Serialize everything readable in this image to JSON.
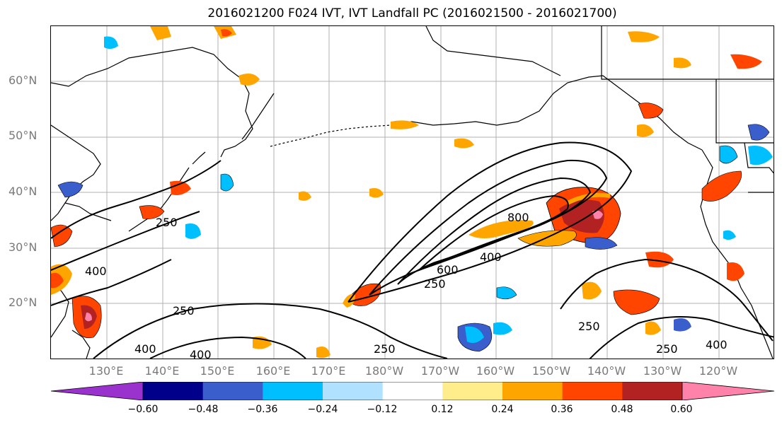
{
  "title": "2016021200 F024 IVT, IVT Landfall PC (2016021500 - 2016021700)",
  "lat_labels": [
    "60°N",
    "50°N",
    "40°N",
    "30°N",
    "20°N"
  ],
  "lon_labels": [
    "130°E",
    "140°E",
    "150°E",
    "160°E",
    "170°E",
    "180°W",
    "170°W",
    "160°W",
    "150°W",
    "140°W",
    "130°W",
    "120°W"
  ],
  "contour_labels": [
    "250",
    "400",
    "250",
    "400",
    "400",
    "250",
    "250",
    "400",
    "600",
    "800",
    "250",
    "250",
    "400"
  ],
  "colorbar": {
    "ticks": [
      "−0.60",
      "−0.48",
      "−0.36",
      "−0.24",
      "−0.12",
      "0.12",
      "0.24",
      "0.36",
      "0.48",
      "0.60"
    ],
    "colors": [
      "#9a32cd",
      "#00008b",
      "#3a5fcd",
      "#00bfff",
      "#b0e2ff",
      "#ffffff",
      "#ffec8b",
      "#ffa500",
      "#ff4500",
      "#b22222",
      "#ff82ab"
    ]
  }
}
